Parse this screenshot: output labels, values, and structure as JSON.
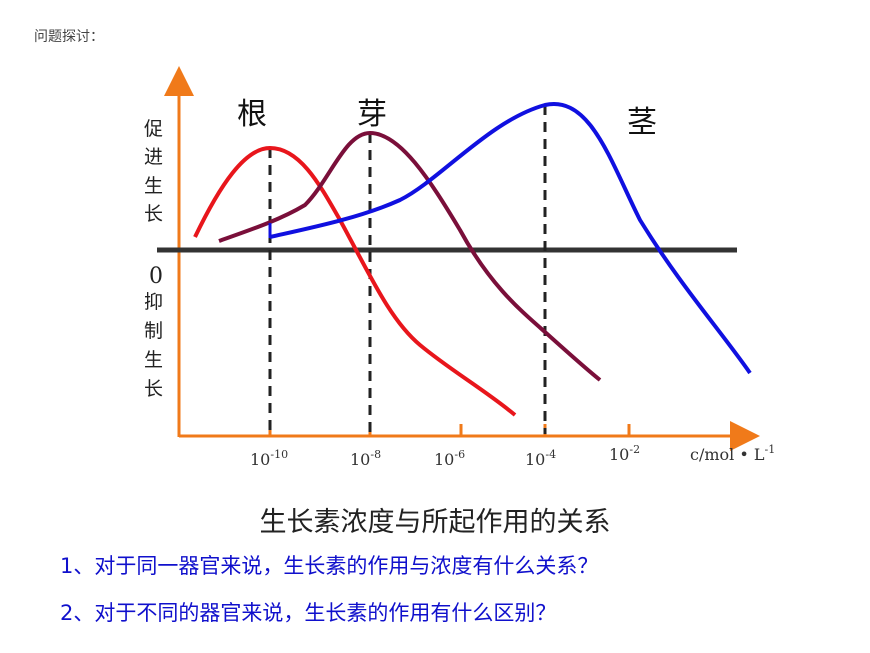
{
  "header": {
    "title": "问题探讨："
  },
  "y_axis": {
    "promote_label": [
      "促",
      "进",
      "生",
      "长"
    ],
    "zero_label": "0",
    "inhibit_label": [
      "抑",
      "制",
      "生",
      "长"
    ]
  },
  "x_axis": {
    "unit_label": "c/mol • L",
    "unit_exp": "-1",
    "ticks": [
      {
        "base": "10",
        "exp": "-10"
      },
      {
        "base": "10",
        "exp": "-8"
      },
      {
        "base": "10",
        "exp": "-6"
      },
      {
        "base": "10",
        "exp": "-4"
      },
      {
        "base": "10",
        "exp": "-2"
      }
    ]
  },
  "curves": [
    {
      "label": "根",
      "color": "#e8161c",
      "peak_exp": -10
    },
    {
      "label": "芽",
      "color": "#7a0f3a",
      "peak_exp": -8
    },
    {
      "label": "茎",
      "color": "#1010e0",
      "peak_exp": -4
    }
  ],
  "caption": "生长素浓度与所起作用的关系",
  "questions": [
    "1、对于同一器官来说，生长素的作用与浓度有什么关系？",
    "2、对于不同的器官来说，生长素的作用有什么区别？"
  ],
  "colors": {
    "axis": "#f07a1a",
    "baseline": "#333333",
    "question_text": "#1010cc"
  }
}
